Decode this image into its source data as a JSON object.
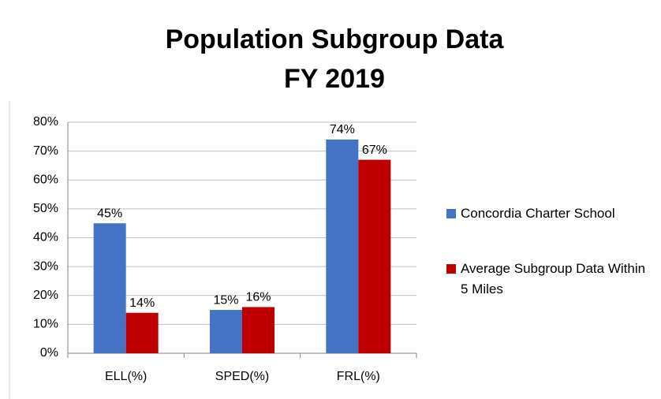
{
  "chart_data": {
    "type": "bar",
    "title": [
      "Population Subgroup Data",
      "FY 2019"
    ],
    "categories": [
      "ELL(%)",
      "SPED(%)",
      "FRL(%)"
    ],
    "series": [
      {
        "name": "Concordia Charter School",
        "color": "#4472c4",
        "values": [
          45,
          15,
          74
        ],
        "value_labels": [
          "45%",
          "15%",
          "74%"
        ]
      },
      {
        "name": "Average Subgroup Data Within 5 Miles",
        "color": "#c00000",
        "values": [
          14,
          16,
          67
        ],
        "value_labels": [
          "14%",
          "16%",
          "67%"
        ]
      }
    ],
    "ylim": [
      0,
      80
    ],
    "yticks": [
      {
        "value": 0,
        "label": "0%"
      },
      {
        "value": 10,
        "label": "10%"
      },
      {
        "value": 20,
        "label": "20%"
      },
      {
        "value": 30,
        "label": "30%"
      },
      {
        "value": 40,
        "label": "40%"
      },
      {
        "value": 50,
        "label": "50%"
      },
      {
        "value": 60,
        "label": "60%"
      },
      {
        "value": 70,
        "label": "70%"
      },
      {
        "value": 80,
        "label": "80%"
      }
    ],
    "grid": true,
    "legend": "right"
  }
}
